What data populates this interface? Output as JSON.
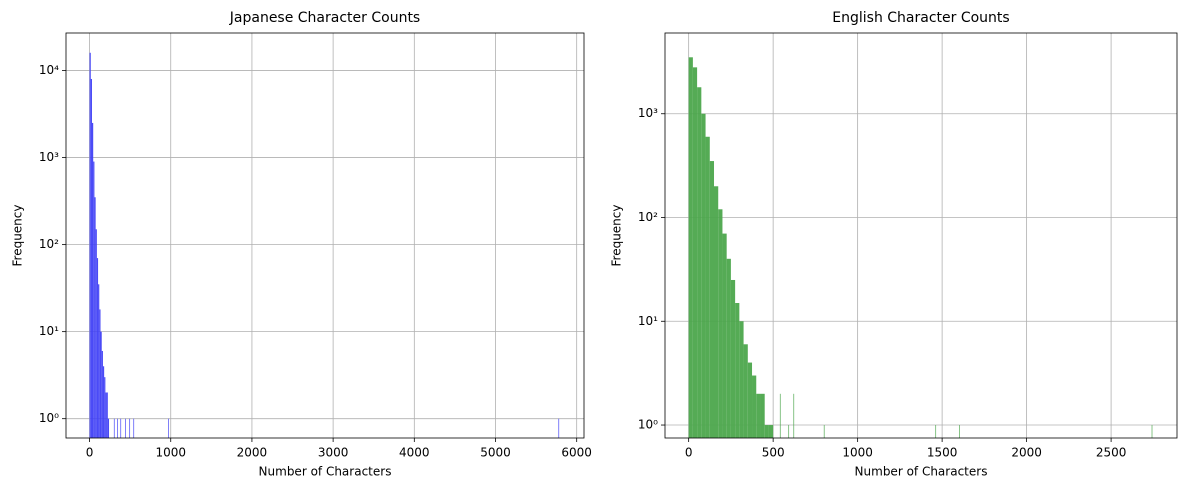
{
  "chart_data": [
    {
      "type": "histogram",
      "title": "Japanese Character Counts",
      "x_label": "Number of Characters",
      "y_label": "Frequency",
      "color": "#4040f5",
      "yscale": "log",
      "grid": true,
      "bins": [
        0,
        15,
        30,
        45,
        60,
        75,
        90,
        105,
        120,
        135,
        150,
        165,
        180,
        195,
        210,
        225,
        240,
        300,
        306,
        340,
        346,
        380,
        386,
        440,
        446,
        490,
        496,
        540,
        546,
        970,
        976,
        5775,
        5781
      ],
      "counts": [
        16000,
        8000,
        2500,
        900,
        350,
        150,
        70,
        35,
        18,
        10,
        6,
        4,
        3,
        2,
        2,
        1,
        0,
        1,
        0,
        1,
        0,
        1,
        0,
        1,
        0,
        1,
        0,
        1,
        0,
        1,
        0,
        1
      ],
      "xlim": [
        -290,
        6090
      ],
      "xticks": [
        0,
        1000,
        2000,
        3000,
        4000,
        5000,
        6000
      ],
      "ylim": [
        0.6,
        27000
      ],
      "yticks": [
        {
          "value": 1,
          "label": "10⁰"
        },
        {
          "value": 10,
          "label": "10¹"
        },
        {
          "value": 100,
          "label": "10²"
        },
        {
          "value": 1000,
          "label": "10³"
        },
        {
          "value": 10000,
          "label": "10⁴"
        }
      ]
    },
    {
      "type": "histogram",
      "title": "English Character Counts",
      "x_label": "Number of Characters",
      "y_label": "Frequency",
      "color": "#4ca64c",
      "yscale": "log",
      "grid": true,
      "bins": [
        0,
        25,
        50,
        75,
        100,
        125,
        150,
        175,
        200,
        225,
        250,
        275,
        300,
        325,
        350,
        375,
        400,
        425,
        450,
        475,
        500,
        540,
        544,
        590,
        594,
        620,
        624,
        800,
        804,
        1460,
        1464,
        1600,
        1604,
        2740,
        2744
      ],
      "counts": [
        3500,
        2800,
        1800,
        1000,
        600,
        350,
        200,
        120,
        70,
        40,
        25,
        15,
        10,
        6,
        4,
        3,
        2,
        2,
        1,
        1,
        0,
        2,
        0,
        1,
        0,
        2,
        0,
        1,
        0,
        1,
        0,
        1,
        0,
        1
      ],
      "xlim": [
        -140,
        2890
      ],
      "xticks": [
        0,
        500,
        1000,
        1500,
        2000,
        2500
      ],
      "ylim": [
        0.75,
        6000
      ],
      "yticks": [
        {
          "value": 1,
          "label": "10⁰"
        },
        {
          "value": 10,
          "label": "10¹"
        },
        {
          "value": 100,
          "label": "10²"
        },
        {
          "value": 1000,
          "label": "10³"
        }
      ]
    }
  ]
}
